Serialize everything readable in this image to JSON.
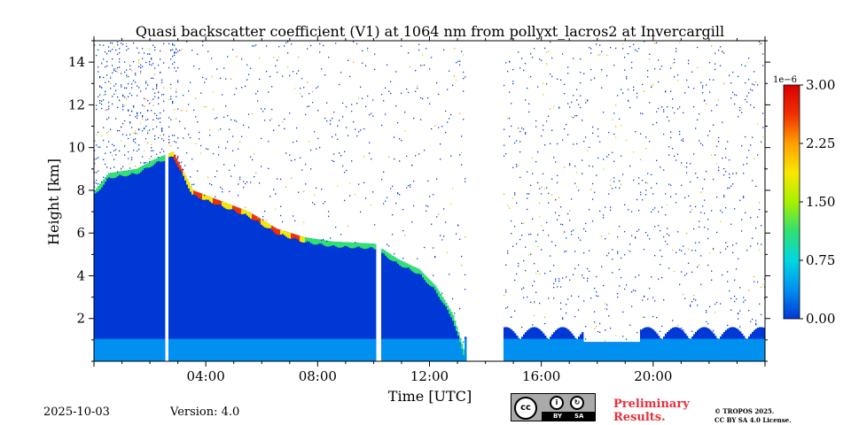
{
  "chart_data": {
    "type": "heatmap",
    "title": "Quasi backscatter coefficient (V1) at 1064 nm from pollyxt_lacros2 at Invercargill",
    "xlabel": "Time [UTC]",
    "ylabel": "Height [km]",
    "xlim_hours": [
      0,
      24
    ],
    "ylim_km": [
      0,
      15
    ],
    "x_ticks": [
      {
        "hours": 4,
        "label": "04:00"
      },
      {
        "hours": 8,
        "label": "08:00"
      },
      {
        "hours": 12,
        "label": "12:00"
      },
      {
        "hours": 16,
        "label": "16:00"
      },
      {
        "hours": 20,
        "label": "20:00"
      }
    ],
    "y_ticks": [
      {
        "km": 2,
        "label": "2"
      },
      {
        "km": 4,
        "label": "4"
      },
      {
        "km": 6,
        "label": "6"
      },
      {
        "km": 8,
        "label": "8"
      },
      {
        "km": 10,
        "label": "10"
      },
      {
        "km": 12,
        "label": "12"
      },
      {
        "km": 14,
        "label": "14"
      }
    ],
    "colorbar": {
      "range": [
        0,
        3.0
      ],
      "exponent_label": "1e−6",
      "ticks": [
        {
          "value": 0.0,
          "label": "0.00"
        },
        {
          "value": 0.75,
          "label": "0.75"
        },
        {
          "value": 1.5,
          "label": "1.50"
        },
        {
          "value": 2.25,
          "label": "2.25"
        },
        {
          "value": 3.0,
          "label": "3.00"
        }
      ],
      "colors": [
        "#0038d6",
        "#0090f0",
        "#00d8e0",
        "#30e070",
        "#a8f000",
        "#f8e800",
        "#ffa000",
        "#f03000",
        "#d80000"
      ]
    },
    "aerosol_layer_top_km": [
      {
        "hours": 0.0,
        "km": 8.0
      },
      {
        "hours": 0.5,
        "km": 8.8
      },
      {
        "hours": 1.5,
        "km": 9.0
      },
      {
        "hours": 2.2,
        "km": 9.5
      },
      {
        "hours": 2.8,
        "km": 9.8
      },
      {
        "hours": 3.5,
        "km": 8.0
      },
      {
        "hours": 4.5,
        "km": 7.5
      },
      {
        "hours": 5.5,
        "km": 7.0
      },
      {
        "hours": 6.5,
        "km": 6.2
      },
      {
        "hours": 7.5,
        "km": 5.8
      },
      {
        "hours": 8.5,
        "km": 5.6
      },
      {
        "hours": 10.0,
        "km": 5.5
      },
      {
        "hours": 10.8,
        "km": 4.8
      },
      {
        "hours": 11.6,
        "km": 4.3
      },
      {
        "hours": 12.2,
        "km": 3.5
      },
      {
        "hours": 12.8,
        "km": 2.2
      },
      {
        "hours": 13.2,
        "km": 0.5
      }
    ],
    "data_gaps_hours": [
      [
        2.5,
        2.6
      ],
      [
        10.05,
        10.25
      ],
      [
        13.3,
        14.6
      ]
    ]
  },
  "footer": {
    "date": "2025-10-03",
    "version": "Version: 4.0",
    "preliminary_line1": "Preliminary",
    "preliminary_line2": "Results.",
    "copyright_line1": "© TROPOS 2025.",
    "copyright_line2": "CC BY SA 4.0 License.",
    "license_badge": {
      "icon": "creative-commons-icon",
      "icon_text": "cc",
      "by_label": "BY",
      "sa_label": "SA"
    }
  }
}
